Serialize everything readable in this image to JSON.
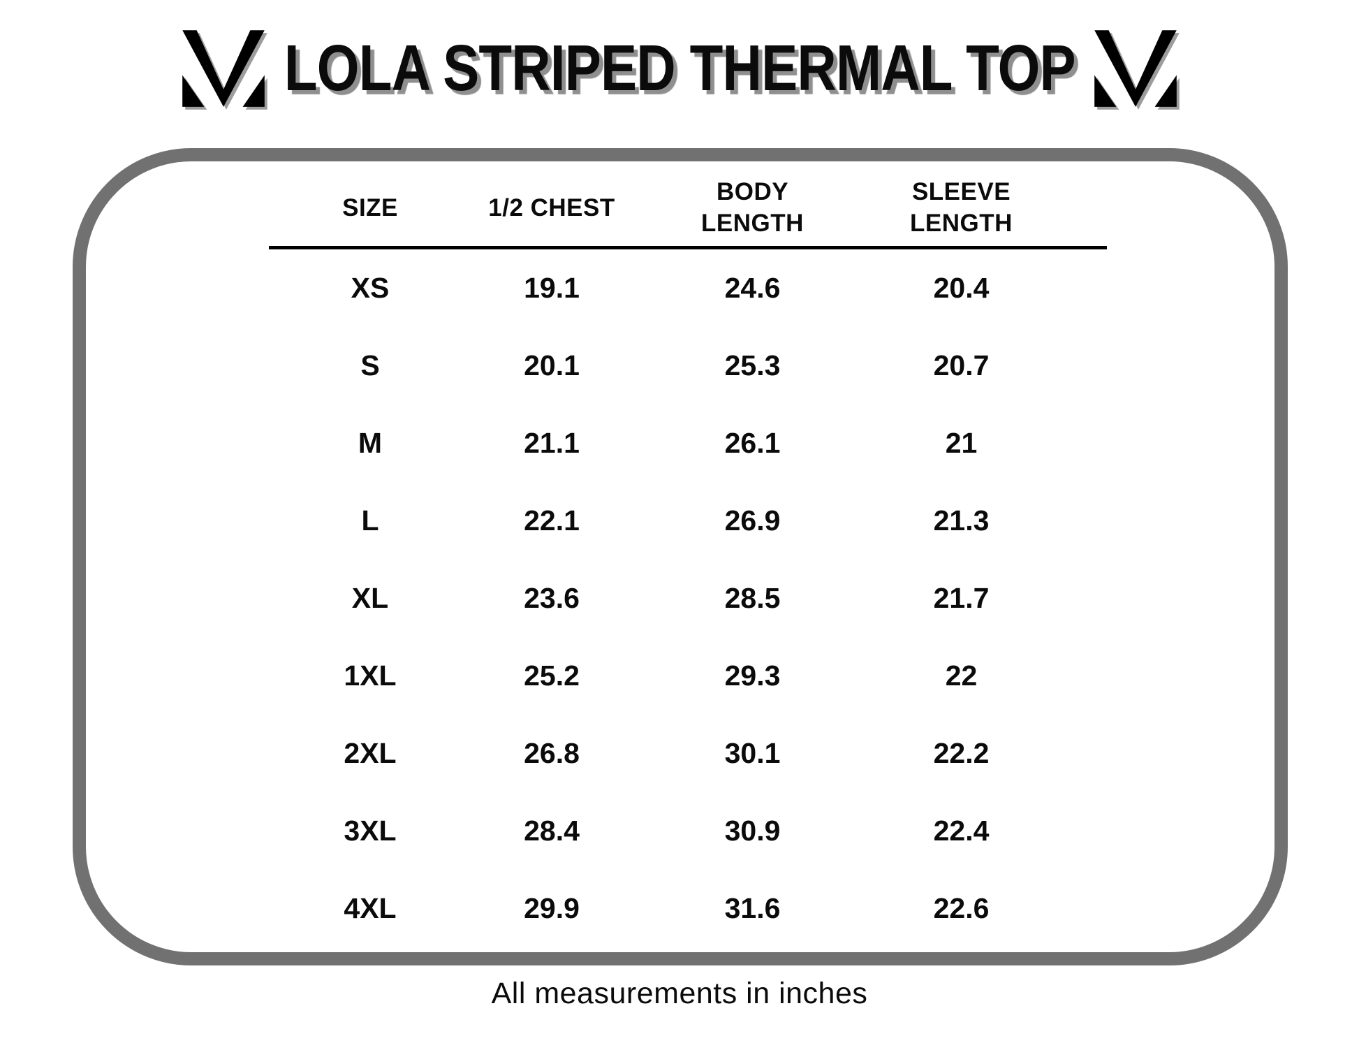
{
  "header": {
    "title": "LOLA STRIPED THERMAL TOP"
  },
  "size_chart": {
    "columns": [
      "SIZE",
      "1/2 CHEST",
      "BODY\nLENGTH",
      "SLEEVE\nLENGTH"
    ],
    "rows": [
      [
        "XS",
        "19.1",
        "24.6",
        "20.4"
      ],
      [
        "S",
        "20.1",
        "25.3",
        "20.7"
      ],
      [
        "M",
        "21.1",
        "26.1",
        "21"
      ],
      [
        "L",
        "22.1",
        "26.9",
        "21.3"
      ],
      [
        "XL",
        "23.6",
        "28.5",
        "21.7"
      ],
      [
        "1XL",
        "25.2",
        "29.3",
        "22"
      ],
      [
        "2XL",
        "26.8",
        "30.1",
        "22.2"
      ],
      [
        "3XL",
        "28.4",
        "30.9",
        "22.4"
      ],
      [
        "4XL",
        "29.9",
        "31.6",
        "22.6"
      ]
    ]
  },
  "footer": {
    "note": "All measurements in inches"
  },
  "colors": {
    "background": "#ffffff",
    "text": "#0b0b0b",
    "panel_border": "#717171",
    "header_rule": "#000000",
    "title_shadow": "#8f8f8f",
    "logo": "#000000"
  },
  "chart_data": {
    "type": "table",
    "title": "LOLA STRIPED THERMAL TOP",
    "columns": [
      "SIZE",
      "1/2 CHEST",
      "BODY LENGTH",
      "SLEEVE LENGTH"
    ],
    "rows": [
      [
        "XS",
        19.1,
        24.6,
        20.4
      ],
      [
        "S",
        20.1,
        25.3,
        20.7
      ],
      [
        "M",
        21.1,
        26.1,
        21
      ],
      [
        "L",
        22.1,
        26.9,
        21.3
      ],
      [
        "XL",
        23.6,
        28.5,
        21.7
      ],
      [
        "1XL",
        25.2,
        29.3,
        22
      ],
      [
        "2XL",
        26.8,
        30.1,
        22.2
      ],
      [
        "3XL",
        28.4,
        30.9,
        22.4
      ],
      [
        "4XL",
        29.9,
        31.6,
        22.6
      ]
    ],
    "note": "All measurements in inches"
  }
}
